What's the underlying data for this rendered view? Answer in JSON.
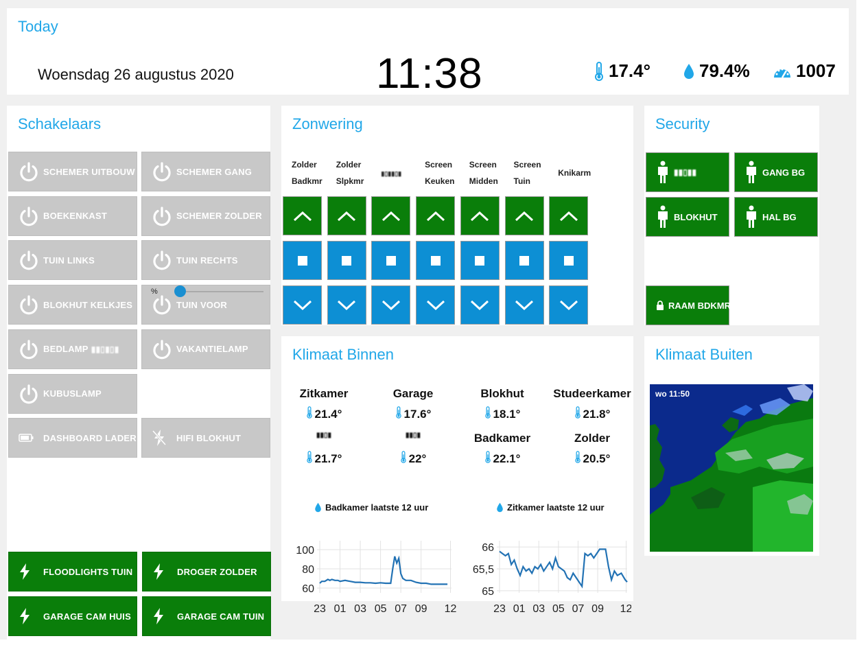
{
  "today": {
    "title": "Today",
    "date": "Woensdag 26 augustus 2020",
    "time": "11:38",
    "temperature": "17.4°",
    "humidity": "79.4%",
    "pressure": "1007"
  },
  "schakelaars": {
    "title": "Schakelaars",
    "buttons": [
      {
        "label": "SCHEMER UITBOUW",
        "icon": "power-icon"
      },
      {
        "label": "SCHEMER GANG",
        "icon": "power-icon"
      },
      {
        "label": "BOEKENKAST",
        "icon": "power-icon"
      },
      {
        "label": "SCHEMER ZOLDER",
        "icon": "power-icon"
      },
      {
        "label": "TUIN LINKS",
        "icon": "power-icon"
      },
      {
        "label": "TUIN RECHTS",
        "icon": "power-icon"
      },
      {
        "label": "BLOKHUT KELKJES",
        "icon": "power-icon"
      },
      {
        "label": "TUIN VOOR",
        "icon": "power-icon"
      },
      {
        "label": "BEDLAMP",
        "icon": "power-icon"
      },
      {
        "label": "VAKANTIELAMP",
        "icon": "power-icon"
      },
      {
        "label": "KUBUSLAMP",
        "icon": "power-icon"
      },
      {
        "label": "DASHBOARD LADER",
        "icon": "battery-icon"
      },
      {
        "label": "HIFI BLOKHUT",
        "icon": "flash-off-icon"
      }
    ],
    "slider": {
      "unit": "%",
      "value": 0
    },
    "green_buttons": [
      {
        "label": "FLOODLIGHTS TUIN",
        "icon": "flash-icon"
      },
      {
        "label": "DROGER ZOLDER",
        "icon": "flash-icon"
      },
      {
        "label": "GARAGE CAM HUIS",
        "icon": "flash-icon"
      },
      {
        "label": "GARAGE CAM TUIN",
        "icon": "flash-icon"
      }
    ]
  },
  "zonwering": {
    "title": "Zonwering",
    "columns": [
      {
        "line1": "Zolder",
        "line2": "Badkmr"
      },
      {
        "line1": "Zolder",
        "line2": "Slpkmr"
      },
      {
        "line1": "",
        "line2": ""
      },
      {
        "line1": "Screen",
        "line2": "Keuken"
      },
      {
        "line1": "Screen",
        "line2": "Midden"
      },
      {
        "line1": "Screen",
        "line2": "Tuin"
      },
      {
        "line1": "Knikarm",
        "line2": ""
      }
    ]
  },
  "security": {
    "title": "Security",
    "buttons": [
      {
        "label": "",
        "icon": "person-icon"
      },
      {
        "label": "GANG BG",
        "icon": "person-icon"
      },
      {
        "label": "BLOKHUT",
        "icon": "person-icon"
      },
      {
        "label": "HAL BG",
        "icon": "person-icon"
      },
      {
        "label": "RAAM BDKMR",
        "icon": "lock-icon"
      }
    ]
  },
  "klimaat_binnen": {
    "title": "Klimaat Binnen",
    "rooms": [
      {
        "name": "Zitkamer",
        "temp": "21.4°"
      },
      {
        "name": "Garage",
        "temp": "17.6°"
      },
      {
        "name": "Blokhut",
        "temp": "18.1°"
      },
      {
        "name": "Studeerkamer",
        "temp": "21.8°"
      },
      {
        "name": "",
        "temp": "21.7°"
      },
      {
        "name": "",
        "temp": "22°"
      },
      {
        "name": "Badkamer",
        "temp": "22.1°"
      },
      {
        "name": "Zolder",
        "temp": "20.5°"
      }
    ]
  },
  "chart_data": [
    {
      "type": "line",
      "title": "Badkamer laatste 12 uur",
      "x_ticks": [
        "23",
        "01",
        "03",
        "05",
        "07",
        "09",
        "12"
      ],
      "y_ticks": [
        "100",
        "80",
        "60"
      ],
      "ylim": [
        55,
        105
      ],
      "grid": true,
      "series": [
        {
          "x": [
            0,
            0.2,
            0.5,
            0.8,
            1.0,
            1.2,
            1.5,
            1.8,
            2.0,
            2.5,
            3.0,
            3.5,
            4.0,
            4.5,
            5.0,
            5.5,
            6.0,
            6.5,
            7.0,
            7.2,
            7.4,
            7.6,
            7.8,
            8.0,
            8.2,
            8.5,
            9.0,
            9.5,
            10.0,
            10.5,
            11.0,
            11.5,
            12.0,
            12.6
          ],
          "y": [
            65,
            67,
            67,
            69,
            68,
            69,
            68,
            68,
            67,
            68,
            67,
            66,
            66,
            65.5,
            65.5,
            65,
            65.5,
            65,
            65,
            80,
            93,
            86,
            91,
            75,
            70,
            68,
            68,
            66,
            65,
            65,
            64,
            64,
            64,
            64
          ]
        }
      ]
    },
    {
      "type": "line",
      "title": "Zitkamer laatste 12 uur",
      "x_ticks": [
        "23",
        "01",
        "03",
        "05",
        "07",
        "09",
        "12"
      ],
      "y_ticks": [
        "66",
        "65,5",
        "65"
      ],
      "ylim": [
        64.95,
        66.05
      ],
      "grid": true,
      "series": [
        {
          "x": [
            0,
            0.3,
            0.6,
            0.9,
            1.2,
            1.5,
            1.8,
            2.1,
            2.4,
            2.7,
            3.0,
            3.3,
            3.6,
            3.9,
            4.2,
            4.5,
            4.8,
            5.1,
            5.4,
            5.7,
            6.0,
            6.3,
            6.6,
            6.9,
            7.2,
            7.5,
            7.8,
            8.1,
            8.4,
            8.7,
            9.0,
            9.3,
            9.6,
            9.9,
            10.2,
            10.5,
            10.8,
            11.1,
            11.4,
            11.7,
            12.0,
            12.4,
            12.8,
            13.0
          ],
          "y": [
            65.9,
            65.85,
            65.8,
            65.85,
            65.6,
            65.7,
            65.5,
            65.35,
            65.55,
            65.45,
            65.5,
            65.4,
            65.55,
            65.5,
            65.6,
            65.45,
            65.55,
            65.65,
            65.5,
            65.75,
            65.55,
            65.5,
            65.45,
            65.3,
            65.25,
            65.4,
            65.3,
            65.2,
            65.1,
            65.85,
            65.8,
            65.85,
            65.75,
            65.85,
            65.95,
            65.95,
            65.95,
            65.55,
            65.25,
            65.45,
            65.35,
            65.4,
            65.25,
            65.2
          ]
        }
      ]
    }
  ],
  "klimaat_buiten": {
    "title": "Klimaat Buiten",
    "radar_time": "wo 11:50"
  },
  "colors": {
    "accent": "#21a7e8",
    "green": "#0a7e0a",
    "blue": "#0d8fd4",
    "grey": "#c8c8c8"
  }
}
